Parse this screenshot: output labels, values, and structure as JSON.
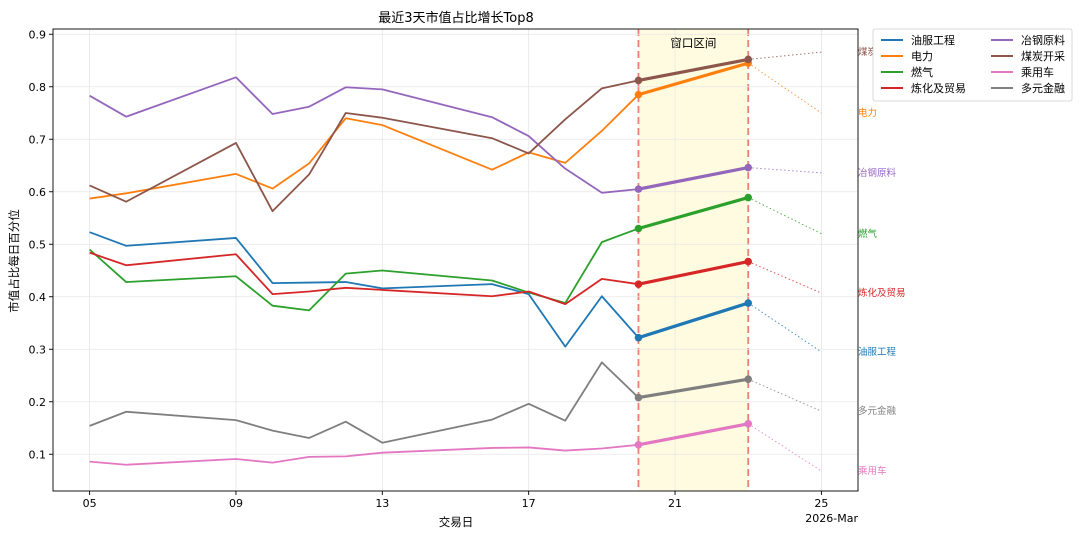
{
  "chart_data": {
    "type": "line",
    "title": "最近3天市值占比增长Top8",
    "xlabel": "交易日",
    "ylabel": "市值占比每日百分位",
    "ylim": [
      0.03,
      0.91
    ],
    "y_ticks": [
      0.1,
      0.2,
      0.3,
      0.4,
      0.5,
      0.6,
      0.7,
      0.8,
      0.9
    ],
    "y_tick_labels": [
      "0.1",
      "0.2",
      "0.3",
      "0.4",
      "0.5",
      "0.6",
      "0.7",
      "0.8",
      "0.9"
    ],
    "x_range": [
      4.0,
      26.0
    ],
    "x_ticks": [
      5,
      9,
      13,
      17,
      21,
      25
    ],
    "x_tick_labels": [
      "05",
      "09",
      "13",
      "17",
      "21",
      "25"
    ],
    "x_offset_label": "2026-Mar",
    "grid": true,
    "legend_position": "outside-right",
    "window": {
      "label": "窗口区间",
      "start": 20,
      "end": 23
    },
    "x": [
      5,
      6,
      9,
      10,
      11,
      12,
      13,
      16,
      17,
      18,
      19,
      20,
      23
    ],
    "series": [
      {
        "name": "油服工程",
        "color": "#1f77b4",
        "values": [
          0.523,
          0.497,
          0.512,
          0.426,
          0.427,
          0.428,
          0.416,
          0.424,
          0.405,
          0.305,
          0.401,
          0.322,
          0.388
        ],
        "forecast": 0.295
      },
      {
        "name": "电力",
        "color": "#ff7f0e",
        "values": [
          0.587,
          0.597,
          0.634,
          0.606,
          0.654,
          0.74,
          0.727,
          0.642,
          0.675,
          0.655,
          0.716,
          0.785,
          0.845
        ],
        "forecast": 0.75
      },
      {
        "name": "燃气",
        "color": "#2ca02c",
        "values": [
          0.49,
          0.428,
          0.439,
          0.383,
          0.374,
          0.444,
          0.45,
          0.431,
          0.408,
          0.388,
          0.504,
          0.53,
          0.589
        ],
        "forecast": 0.52
      },
      {
        "name": "炼化及贸易",
        "color": "#d62728",
        "values": [
          0.484,
          0.46,
          0.481,
          0.405,
          0.41,
          0.417,
          0.413,
          0.401,
          0.41,
          0.386,
          0.434,
          0.424,
          0.467
        ],
        "forecast": 0.407
      },
      {
        "name": "冶钢原料",
        "color": "#9467bd",
        "values": [
          0.783,
          0.743,
          0.818,
          0.748,
          0.762,
          0.799,
          0.795,
          0.742,
          0.706,
          0.644,
          0.598,
          0.605,
          0.646
        ],
        "forecast": 0.636
      },
      {
        "name": "煤炭开采",
        "color": "#8c564b",
        "values": [
          0.612,
          0.581,
          0.693,
          0.563,
          0.633,
          0.75,
          0.741,
          0.702,
          0.673,
          0.738,
          0.797,
          0.812,
          0.852
        ],
        "forecast": 0.866
      },
      {
        "name": "乘用车",
        "color": "#e377c2",
        "values": [
          0.086,
          0.08,
          0.091,
          0.084,
          0.095,
          0.096,
          0.103,
          0.112,
          0.113,
          0.107,
          0.111,
          0.118,
          0.158
        ],
        "forecast": 0.068
      },
      {
        "name": "多元金融",
        "color": "#7f7f7f",
        "values": [
          0.154,
          0.181,
          0.165,
          0.145,
          0.131,
          0.162,
          0.122,
          0.166,
          0.196,
          0.164,
          0.275,
          0.208,
          0.243
        ],
        "forecast": 0.182
      }
    ]
  }
}
